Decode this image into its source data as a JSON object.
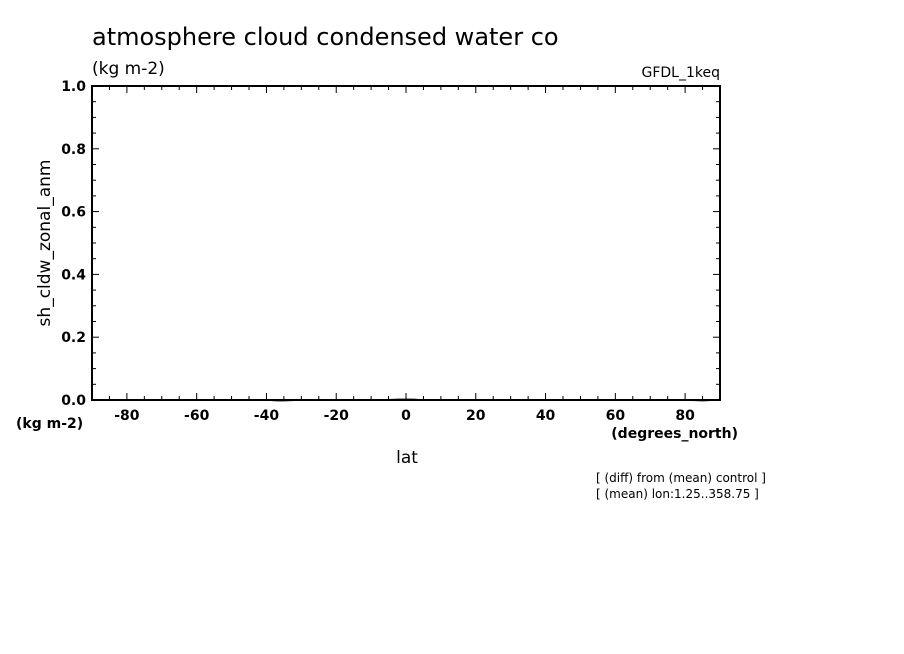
{
  "chart_data": {
    "type": "line",
    "title": "atmosphere cloud condensed water co",
    "subtitle": "(kg m-2)",
    "model_label": "GFDL_1keq",
    "ylabel": "sh_cldw_zonal_anm",
    "yunit": "(kg m-2)",
    "xlabel": "lat",
    "xunit": "(degrees_north)",
    "xlim": [
      -90,
      90
    ],
    "ylim": [
      0.0,
      1.0
    ],
    "xticks": [
      "-80",
      "-60",
      "-40",
      "-20",
      "0",
      "20",
      "40",
      "60",
      "80"
    ],
    "xtick_values": [
      -80,
      -60,
      -40,
      -20,
      0,
      20,
      40,
      60,
      80
    ],
    "yticks": [
      "0.0",
      "0.2",
      "0.4",
      "0.6",
      "0.8",
      "1.0"
    ],
    "ytick_values": [
      0.0,
      0.2,
      0.4,
      0.6,
      0.8,
      1.0
    ],
    "grid": false,
    "notes": [
      "[ (diff) from (mean) control ]",
      "[ (mean) lon:1.25..358.75 ]"
    ],
    "series": [
      {
        "x": [
          -89,
          -80,
          -70,
          -60,
          -50,
          -40,
          -37,
          -35,
          -30,
          -20,
          -10,
          -5,
          -2,
          0,
          2,
          4,
          6,
          8,
          10,
          20,
          30,
          40,
          50,
          60,
          70,
          80,
          85,
          89
        ],
        "values": [
          0.0,
          0.0,
          0.0,
          0.0,
          0.0,
          0.0,
          -0.002,
          -0.002,
          0.0,
          0.0,
          0.0,
          0.001,
          0.002,
          0.002,
          0.002,
          0.001,
          -0.001,
          0.0,
          0.0,
          0.0,
          0.0,
          0.0,
          0.0,
          0.0,
          0.0,
          0.0,
          -0.002,
          0.0
        ]
      }
    ]
  }
}
